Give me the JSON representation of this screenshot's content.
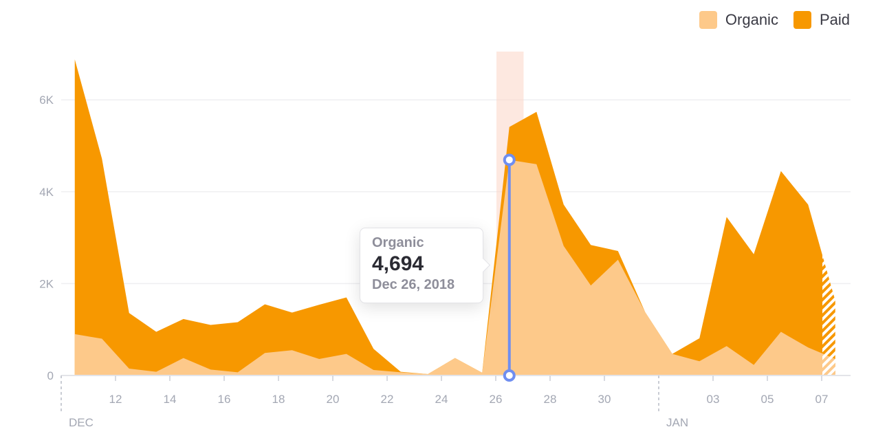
{
  "legend": [
    {
      "label": "Organic",
      "color": "#fdc98a"
    },
    {
      "label": "Paid",
      "color": "#f79800"
    }
  ],
  "tooltip": {
    "series": "Organic",
    "value": "4,694",
    "date": "Dec 26, 2018"
  },
  "chart_data": {
    "type": "area",
    "stacked": true,
    "title": "",
    "xlabel": "",
    "ylabel": "",
    "ylim": [
      0,
      7000
    ],
    "y_ticks": [
      {
        "value": 0,
        "label": "0"
      },
      {
        "value": 2000,
        "label": "2K"
      },
      {
        "value": 4000,
        "label": "4K"
      },
      {
        "value": 6000,
        "label": "6K"
      }
    ],
    "x": [
      "Dec 10",
      "Dec 11",
      "Dec 12",
      "Dec 13",
      "Dec 14",
      "Dec 15",
      "Dec 16",
      "Dec 17",
      "Dec 18",
      "Dec 19",
      "Dec 20",
      "Dec 21",
      "Dec 22",
      "Dec 23",
      "Dec 24",
      "Dec 25",
      "Dec 26",
      "Dec 27",
      "Dec 28",
      "Dec 29",
      "Dec 30",
      "Dec 31",
      "Jan 01",
      "Jan 02",
      "Jan 03",
      "Jan 04",
      "Jan 05",
      "Jan 06",
      "Jan 07"
    ],
    "x_tick_labels": [
      {
        "day_index": 2,
        "label": "12"
      },
      {
        "day_index": 4,
        "label": "14"
      },
      {
        "day_index": 6,
        "label": "16"
      },
      {
        "day_index": 8,
        "label": "18"
      },
      {
        "day_index": 10,
        "label": "20"
      },
      {
        "day_index": 12,
        "label": "22"
      },
      {
        "day_index": 14,
        "label": "24"
      },
      {
        "day_index": 16,
        "label": "26"
      },
      {
        "day_index": 18,
        "label": "28"
      },
      {
        "day_index": 20,
        "label": "30"
      },
      {
        "day_index": 24,
        "label": "03"
      },
      {
        "day_index": 26,
        "label": "05"
      },
      {
        "day_index": 28,
        "label": "07"
      }
    ],
    "month_labels": [
      {
        "day_index": 0,
        "label": "DEC"
      },
      {
        "day_index": 22,
        "label": "JAN"
      }
    ],
    "series": [
      {
        "name": "Organic",
        "color": "#fdc98a",
        "values": [
          900,
          800,
          150,
          80,
          380,
          130,
          70,
          490,
          550,
          360,
          470,
          120,
          70,
          30,
          380,
          60,
          4694,
          4600,
          2820,
          1960,
          2520,
          1380,
          470,
          310,
          640,
          230,
          950,
          610,
          360
        ]
      },
      {
        "name": "Paid",
        "color": "#f79800",
        "values": [
          5980,
          3920,
          1210,
          870,
          850,
          970,
          1090,
          1060,
          820,
          1180,
          1230,
          460,
          10,
          0,
          0,
          0,
          716,
          1140,
          900,
          880,
          190,
          0,
          0,
          500,
          2810,
          2410,
          3500,
          3110,
          1270
        ]
      }
    ],
    "partial_last_point": true,
    "highlight": {
      "day_index": 16,
      "series": "Organic",
      "value": 4694
    }
  }
}
